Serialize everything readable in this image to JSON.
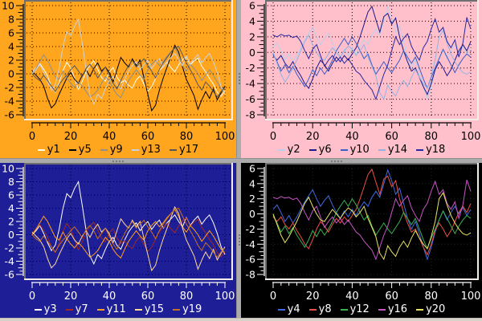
{
  "window": {
    "splitter_color": "#ababab",
    "splitter_grip_color": "#787878",
    "bottom_edge_color": "#d6d2ca"
  },
  "chart_data": {
    "type": "line",
    "layout": "2x2 splitter grid of line plots, legend at bottom of each, dotted grid, ruler-style axes",
    "xlabel": "",
    "ylabel": "",
    "x": [
      0,
      2,
      4,
      6,
      8,
      10,
      12,
      14,
      16,
      18,
      20,
      22,
      24,
      26,
      28,
      30,
      32,
      34,
      36,
      38,
      40,
      42,
      44,
      46,
      48,
      50,
      52,
      54,
      56,
      58,
      60,
      62,
      64,
      66,
      68,
      70,
      72,
      74,
      76,
      78,
      80,
      82,
      84,
      86,
      88,
      90,
      92,
      94,
      96,
      98,
      100
    ],
    "series_pool": {
      "L1": [
        0.2,
        0.9,
        1.5,
        0.7,
        -0.3,
        -1.9,
        -2.7,
        -1.3,
        0.5,
        1.7,
        0.9,
        -0.7,
        -2.3,
        -1.1,
        0.3,
        1.3,
        1.9,
        0.7,
        -0.5,
        -1.1,
        0.3,
        0.9,
        -0.5,
        -1.3,
        -0.9,
        -1.7,
        -2.1,
        -0.9,
        -0.3,
        -1.5,
        -2.5,
        -1.9,
        -0.7,
        0.5,
        1.1,
        1.7,
        0.9,
        0.3,
        1.3,
        2.1,
        2.5,
        1.3,
        1.9,
        2.3,
        1.1,
        0.3,
        -0.7,
        -1.5,
        -2.7,
        -3.3,
        -2.5
      ],
      "L2": [
        0.4,
        -0.2,
        -0.8,
        -1.8,
        -3.6,
        -5.0,
        -4.4,
        -3.0,
        -1.8,
        -0.6,
        0.2,
        -0.8,
        -1.4,
        -0.2,
        0.6,
        -0.4,
        0.8,
        1.6,
        0.4,
        1.0,
        0.2,
        -1.2,
        0.6,
        2.4,
        1.6,
        1.0,
        2.2,
        1.2,
        2.0,
        -0.6,
        -3.0,
        -5.4,
        -4.6,
        -2.4,
        -0.6,
        1.0,
        2.6,
        4.2,
        3.2,
        1.0,
        -0.8,
        -2.0,
        -3.2,
        -5.2,
        -3.8,
        -2.6,
        -3.6,
        -2.2,
        -3.8,
        -2.8,
        -1.8
      ],
      "L3": [
        0,
        0.8,
        1.8,
        2.8,
        2.0,
        0.8,
        -0.4,
        -0.8,
        0.4,
        -0.6,
        -1.4,
        -2.0,
        -1.2,
        -1.8,
        -2.6,
        -3.4,
        -3.0,
        -2.4,
        -1.4,
        -0.4,
        -1.0,
        -2.2,
        -3.0,
        -3.5,
        -2.2,
        -1.0,
        -0.2,
        0.6,
        -0.2,
        -0.8,
        0.6,
        1.4,
        2.0,
        1.2,
        1.8,
        2.6,
        3.2,
        3.8,
        2.8,
        1.2,
        0.4,
        1.4,
        0.8,
        0.0,
        -1.0,
        -0.2,
        0.6,
        -0.2,
        -1.2,
        -2.2,
        -2.8
      ],
      "L4": [
        0,
        0.6,
        1.4,
        0.2,
        -1.2,
        -2.4,
        -1.6,
        0.8,
        4.0,
        6.2,
        5.6,
        7.0,
        8.0,
        4.4,
        0.6,
        -3.2,
        -4.4,
        -3.0,
        -3.6,
        -2.2,
        -1.0,
        -0.4,
        -1.6,
        -2.2,
        -0.8,
        0.4,
        1.2,
        1.8,
        0.6,
        1.4,
        2.0,
        0.8,
        1.6,
        2.2,
        1.0,
        1.8,
        2.4,
        3.0,
        2.0,
        1.2,
        2.6,
        1.4,
        2.2,
        2.8,
        1.6,
        2.4,
        3.0,
        1.8,
        0.2,
        -1.8,
        -3.0
      ],
      "L5": [
        0,
        -0.6,
        -1.0,
        -0.2,
        -1.0,
        -1.8,
        -2.6,
        -1.6,
        -0.8,
        -0.2,
        0.6,
        1.2,
        0.4,
        -0.4,
        0.8,
        1.4,
        0.6,
        -0.6,
        0.2,
        1.0,
        -0.2,
        -1.4,
        -2.2,
        -1.0,
        0.2,
        1.2,
        2.0,
        1.0,
        1.6,
        2.2,
        1.2,
        0.4,
        -0.6,
        0.6,
        1.6,
        2.4,
        3.2,
        3.8,
        4.0,
        2.8,
        1.6,
        0.6,
        -0.4,
        -1.6,
        -2.4,
        -1.2,
        -1.8,
        -2.6,
        -3.4,
        -2.6,
        -2.0
      ],
      "R1": [
        0.6,
        1.2,
        0.2,
        -1.0,
        -0.2,
        -1.2,
        -0.4,
        0.6,
        1.6,
        2.4,
        3.2,
        2.0,
        1.0,
        1.8,
        2.4,
        1.2,
        0.2,
        -0.6,
        0.4,
        -0.4,
        0.6,
        -0.2,
        0.8,
        1.6,
        1.0,
        2.2,
        3.0,
        2.2,
        4.0,
        5.8,
        4.4,
        2.6,
        3.4,
        1.4,
        -0.6,
        -2.0,
        -1.0,
        -2.6,
        -4.4,
        -6.0,
        -4.4,
        -2.4,
        -0.8,
        0.4,
        -0.8,
        0.2,
        1.0,
        0.0,
        0.8,
        -0.2,
        0.6
      ],
      "R2": [
        -0.4,
        -1.0,
        -0.4,
        -1.4,
        -2.0,
        -1.2,
        -2.2,
        -3.0,
        -4.0,
        -4.6,
        -3.4,
        -2.0,
        -1.0,
        -1.6,
        -2.4,
        -1.4,
        -0.6,
        -1.2,
        -0.4,
        -1.0,
        -0.2,
        0.6,
        2.0,
        3.6,
        5.2,
        5.9,
        4.2,
        2.6,
        4.6,
        5.0,
        3.6,
        4.4,
        2.0,
        0.2,
        -1.2,
        -2.4,
        -2.0,
        -3.2,
        -4.4,
        -5.4,
        -4.0,
        -2.2,
        -1.2,
        -2.0,
        -3.0,
        -2.2,
        -1.0,
        0.2,
        1.0,
        0.2,
        1.4
      ],
      "R3": [
        -0.2,
        -1.2,
        -2.4,
        -1.6,
        -2.6,
        -1.8,
        -2.8,
        -3.6,
        -4.4,
        -3.4,
        -2.2,
        -3.0,
        -2.0,
        -2.8,
        -2.0,
        -1.0,
        0.2,
        1.0,
        1.8,
        1.0,
        2.0,
        1.2,
        0.2,
        -0.8,
        -0.2,
        -1.6,
        -2.8,
        -2.0,
        -1.2,
        -2.0,
        -2.6,
        -1.8,
        -1.0,
        0.2,
        -0.6,
        -1.4,
        -0.6,
        -2.0,
        -3.4,
        -4.6,
        -3.2,
        -2.0,
        -0.8,
        0.4,
        -0.6,
        -1.6,
        -2.6,
        -1.6,
        -0.8,
        -0.2,
        -0.6
      ],
      "R4": [
        2.2,
        2.0,
        2.3,
        2.1,
        2.2,
        1.9,
        2.1,
        1.4,
        0.2,
        -0.8,
        0.4,
        1.0,
        -0.4,
        -1.8,
        -1.0,
        -0.4,
        -1.2,
        -0.6,
        -1.4,
        -0.8,
        -1.6,
        -2.4,
        -2.8,
        -3.6,
        -4.2,
        -4.8,
        -6.0,
        -4.4,
        -2.8,
        -1.6,
        0.2,
        2.0,
        1.0,
        1.8,
        2.4,
        0.8,
        -0.2,
        -1.0,
        0.6,
        1.4,
        3.0,
        4.3,
        2.6,
        3.2,
        1.4,
        0.6,
        1.6,
        -0.6,
        1.2,
        4.5,
        3.0
      ],
      "R5": [
        0.0,
        -1.4,
        -2.8,
        -3.8,
        -3.0,
        -2.0,
        -1.0,
        0.2,
        1.4,
        2.2,
        1.0,
        0.0,
        -0.8,
        -1.0,
        -0.2,
        0.6,
        0.0,
        -0.6,
        0.2,
        0.8,
        0.4,
        -0.4,
        0.2,
        1.0,
        -0.6,
        -1.8,
        -3.0,
        -5.2,
        -6.0,
        -4.2,
        -5.0,
        -5.6,
        -4.4,
        -3.6,
        -4.4,
        -3.2,
        -2.2,
        -3.2,
        -4.0,
        -4.6,
        -3.0,
        -1.0,
        2.0,
        2.8,
        1.2,
        -0.2,
        -1.2,
        -2.0,
        -2.6,
        -2.8,
        -2.5
      ]
    },
    "charts": [
      {
        "id": "top-left",
        "bg": "#ffa51e",
        "fg": "#000000",
        "grid": "#000000",
        "x": {
          "min": 0,
          "max": 100,
          "ticks": [
            0,
            20,
            40,
            60,
            80,
            100
          ],
          "minor": 4
        },
        "y": {
          "min": -6,
          "max": 10,
          "ticks": [
            10,
            8,
            6,
            4,
            2,
            0,
            -2,
            -4,
            -6
          ]
        },
        "series": [
          {
            "name": "y1",
            "color": "#fffff0",
            "data": "L1"
          },
          {
            "name": "y5",
            "color": "#000000",
            "data": "L2"
          },
          {
            "name": "y9",
            "color": "#8f8f8f",
            "data": "L3"
          },
          {
            "name": "y13",
            "color": "#ccd2da",
            "data": "L4"
          },
          {
            "name": "y17",
            "color": "#55565e",
            "data": "L5"
          }
        ]
      },
      {
        "id": "top-right",
        "bg": "#ffc0cb",
        "fg": "#000000",
        "grid": "#000000",
        "x": {
          "min": 0,
          "max": 100,
          "ticks": [
            0,
            20,
            40,
            60,
            80,
            100
          ],
          "minor": 4
        },
        "y": {
          "min": -8,
          "max": 6,
          "ticks": [
            6,
            4,
            2,
            0,
            -2,
            -4,
            -6,
            -8
          ]
        },
        "series": [
          {
            "name": "y2",
            "color": "#b9cfec",
            "data": "R1"
          },
          {
            "name": "y6",
            "color": "#19198c",
            "data": "R2"
          },
          {
            "name": "y10",
            "color": "#3c5cc8",
            "data": "R3"
          },
          {
            "name": "y14",
            "color": "#93b2e4",
            "data": "R5"
          },
          {
            "name": "y18",
            "color": "#2828a0",
            "data": "R4"
          }
        ]
      },
      {
        "id": "bottom-left",
        "bg": "#1e1e96",
        "fg": "#ffffff",
        "grid": "#000000",
        "x": {
          "min": 0,
          "max": 100,
          "ticks": [
            0,
            20,
            40,
            60,
            80,
            100
          ],
          "minor": 4
        },
        "y": {
          "min": -6,
          "max": 10,
          "ticks": [
            10,
            8,
            6,
            4,
            2,
            0,
            -2,
            -4,
            -6
          ]
        },
        "series": [
          {
            "name": "y3",
            "color": "#ffffff",
            "data": "L4"
          },
          {
            "name": "y7",
            "color": "#a02828",
            "data": "L1"
          },
          {
            "name": "y11",
            "color": "#ff9e1e",
            "data": "L3"
          },
          {
            "name": "y15",
            "color": "#ffd9a0",
            "data": "L2"
          },
          {
            "name": "y19",
            "color": "#c87020",
            "data": "L5"
          }
        ]
      },
      {
        "id": "bottom-right",
        "bg": "#000000",
        "fg": "#ffffff",
        "grid": "#262626",
        "x": {
          "min": 0,
          "max": 100,
          "ticks": [
            0,
            20,
            40,
            60,
            80,
            100
          ],
          "minor": 4
        },
        "y": {
          "min": -8,
          "max": 6,
          "ticks": [
            6,
            4,
            2,
            0,
            -2,
            -4,
            -6,
            -8
          ]
        },
        "series": [
          {
            "name": "y4",
            "color": "#4169e1",
            "data": "R1"
          },
          {
            "name": "y8",
            "color": "#ee4f44",
            "data": "R2"
          },
          {
            "name": "y12",
            "color": "#3cb054",
            "data": "R3"
          },
          {
            "name": "y16",
            "color": "#c454c4",
            "data": "R4"
          },
          {
            "name": "y20",
            "color": "#e9e264",
            "data": "R5"
          }
        ]
      }
    ]
  }
}
